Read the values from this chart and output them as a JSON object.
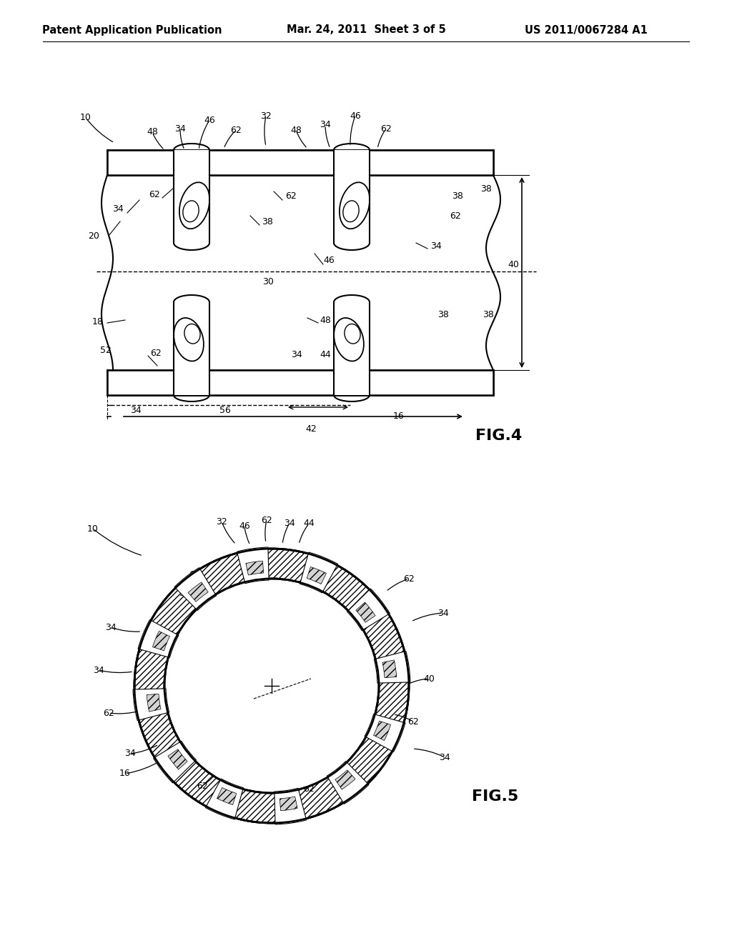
{
  "background_color": "#ffffff",
  "header_left": "Patent Application Publication",
  "header_center": "Mar. 24, 2011  Sheet 3 of 5",
  "header_right": "US 2011/0067284 A1",
  "line_color": "#000000",
  "text_color": "#000000",
  "fig4_label": "FIG.4",
  "fig5_label": "FIG.5"
}
